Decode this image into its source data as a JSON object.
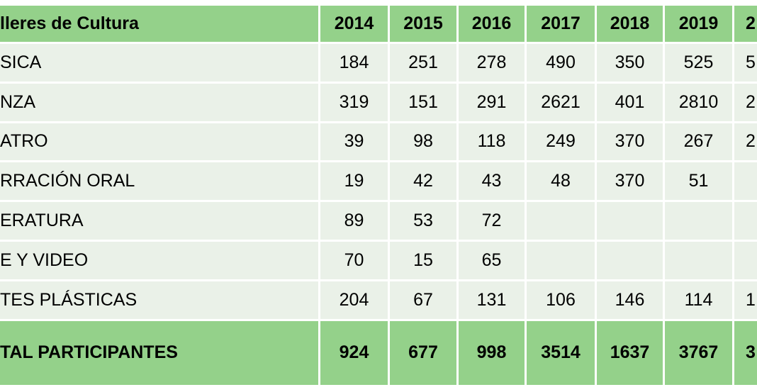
{
  "table": {
    "header": [
      "lleres de Cultura",
      "2014",
      "2015",
      "2016",
      "2017",
      "2018",
      "2019",
      "2"
    ],
    "rows": [
      [
        "SICA",
        "184",
        "251",
        "278",
        "490",
        "350",
        "525",
        "5"
      ],
      [
        "NZA",
        "319",
        "151",
        "291",
        "2621",
        "401",
        "2810",
        "2"
      ],
      [
        "ATRO",
        "39",
        "98",
        "118",
        "249",
        "370",
        "267",
        "2"
      ],
      [
        "RRACIÓN ORAL",
        "19",
        "42",
        "43",
        "48",
        "370",
        "51",
        null
      ],
      [
        "ERATURA",
        "89",
        "53",
        "72",
        null,
        null,
        null,
        null
      ],
      [
        "E Y VIDEO",
        "70",
        "15",
        "65",
        null,
        null,
        null,
        null
      ],
      [
        "TES PLÁSTICAS",
        "204",
        "67",
        "131",
        "106",
        "146",
        "114",
        "1"
      ]
    ],
    "total": [
      "TAL PARTICIPANTES",
      "924",
      "677",
      "998",
      "3514",
      "1637",
      "3767",
      "3"
    ]
  }
}
